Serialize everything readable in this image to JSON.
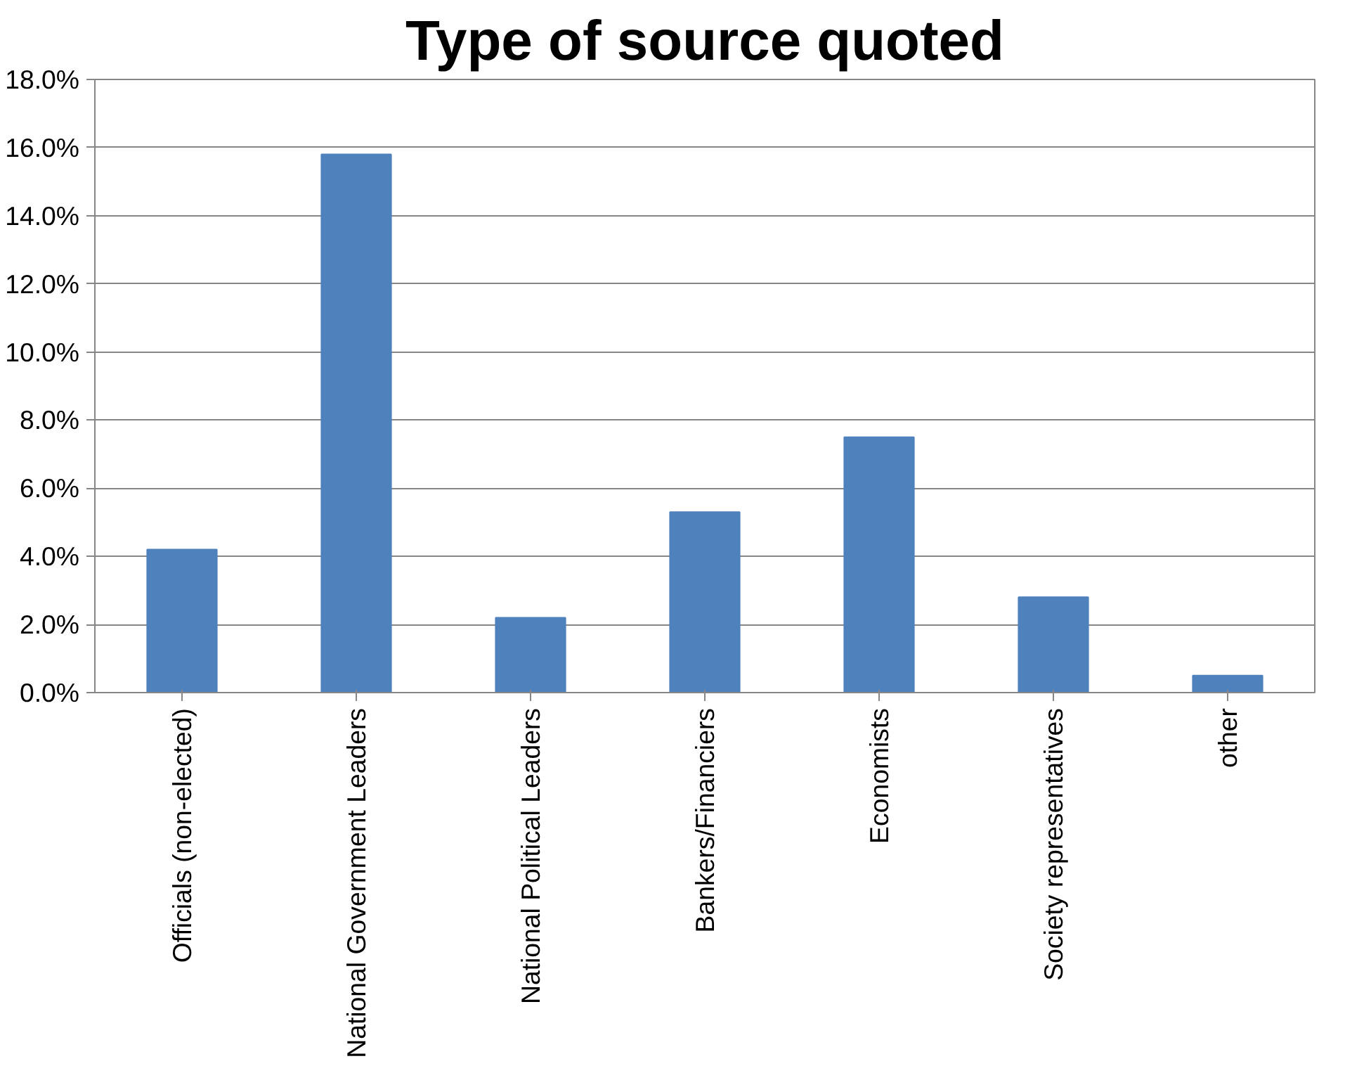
{
  "chart_data": {
    "type": "bar",
    "title": "Type of source quoted",
    "categories": [
      "Officials (non-elected)",
      "National Government Leaders",
      "National Political Leaders",
      "Bankers/Financiers",
      "Economists",
      "Society representatives",
      "other"
    ],
    "values": [
      4.2,
      15.8,
      2.2,
      5.3,
      7.5,
      2.8,
      0.5
    ],
    "color": "#4f81bd",
    "ylim": [
      0,
      18
    ],
    "yticks": [
      {
        "value": 0,
        "label": "0.0%"
      },
      {
        "value": 2,
        "label": "2.0%"
      },
      {
        "value": 4,
        "label": "4.0%"
      },
      {
        "value": 6,
        "label": "6.0%"
      },
      {
        "value": 8,
        "label": "8.0%"
      },
      {
        "value": 10,
        "label": "10.0%"
      },
      {
        "value": 12,
        "label": "12.0%"
      },
      {
        "value": 14,
        "label": "14.0%"
      },
      {
        "value": 16,
        "label": "16.0%"
      },
      {
        "value": 18,
        "label": "18.0%"
      }
    ],
    "grid": "y"
  }
}
